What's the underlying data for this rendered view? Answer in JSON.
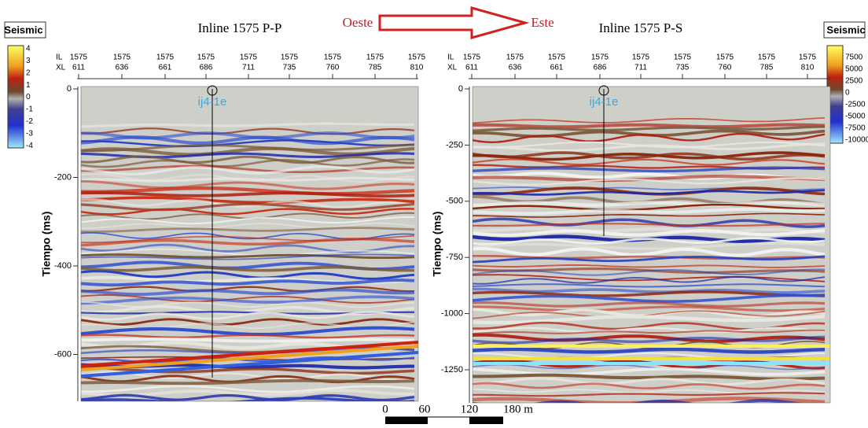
{
  "direction": {
    "from": "Oeste",
    "to": "Este"
  },
  "panels": [
    {
      "title": "Inline 1575 P-P",
      "colorbar": {
        "title": "Seismic",
        "labels": [
          4,
          3,
          2,
          1,
          0,
          -1,
          -2,
          -3,
          -4
        ]
      },
      "il_label": "IL",
      "xl_label": "XL",
      "il_values": [
        1575,
        1575,
        1575,
        1575,
        1575,
        1575,
        1575,
        1575,
        1575
      ],
      "xl_values": [
        611,
        636,
        661,
        686,
        711,
        735,
        760,
        785,
        810
      ],
      "y_axis_title": "Tiempo (ms)",
      "y_ticks": [
        0,
        -200,
        -400,
        -600
      ],
      "well": "ij4-1e"
    },
    {
      "title": "Inline 1575 P-S",
      "colorbar": {
        "title": "Seismic",
        "labels": [
          7500,
          5000,
          2500,
          0,
          -2500,
          -5000,
          -7500,
          -10000
        ]
      },
      "il_label": "IL",
      "xl_label": "XL",
      "il_values": [
        1575,
        1575,
        1575,
        1575,
        1575,
        1575,
        1575,
        1575,
        1575
      ],
      "xl_values": [
        611,
        636,
        661,
        686,
        711,
        735,
        760,
        785,
        810
      ],
      "y_axis_title": "Tiempo (ms)",
      "y_ticks": [
        0,
        -250,
        -500,
        -750,
        -1000,
        -1250
      ],
      "well": "ij4-1e"
    }
  ],
  "scale_bar": {
    "labels": [
      "0",
      "60",
      "120",
      "180 m"
    ]
  }
}
